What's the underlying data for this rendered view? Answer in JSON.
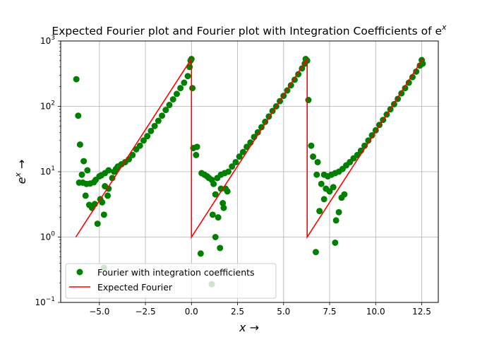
{
  "chart_data": {
    "type": "scatter",
    "title": "Expected Fourier plot and Fourier plot with Integration Coefficients of e",
    "title_sup": "x",
    "xlabel": "x →",
    "ylabel_base": "e",
    "ylabel_sup": "x",
    "ylabel_arrow": " →",
    "xlim": [
      -7.1,
      13.4
    ],
    "ylim": [
      0.1,
      1000
    ],
    "yscale": "log",
    "grid": true,
    "legend_position": "lower-left",
    "x_ticks": [
      {
        "value": -5.0,
        "label": "−5.0"
      },
      {
        "value": -2.5,
        "label": "−2.5"
      },
      {
        "value": 0.0,
        "label": "0.0"
      },
      {
        "value": 2.5,
        "label": "2.5"
      },
      {
        "value": 5.0,
        "label": "5.0"
      },
      {
        "value": 7.5,
        "label": "7.5"
      },
      {
        "value": 10.0,
        "label": "10.0"
      },
      {
        "value": 12.5,
        "label": "12.5"
      }
    ],
    "y_ticks": [
      {
        "value": 0.1,
        "base": "10",
        "exp": "−1"
      },
      {
        "value": 1,
        "base": "10",
        "exp": "0"
      },
      {
        "value": 10,
        "base": "10",
        "exp": "1"
      },
      {
        "value": 100,
        "base": "10",
        "exp": "2"
      },
      {
        "value": 1000,
        "base": "10",
        "exp": "3"
      }
    ],
    "series": [
      {
        "name": "Fourier with integration coefficients",
        "kind": "scatter",
        "color": "#008000",
        "points": [
          [
            -6.25,
            260
          ],
          [
            -6.15,
            72
          ],
          [
            -6.05,
            26
          ],
          [
            -5.95,
            9
          ],
          [
            -5.85,
            14.5
          ],
          [
            -5.75,
            4.3
          ],
          [
            -5.65,
            10.5
          ],
          [
            -5.55,
            3.1
          ],
          [
            -5.4,
            2.8
          ],
          [
            -5.25,
            3.2
          ],
          [
            -5.1,
            1.6
          ],
          [
            -4.95,
            3.8
          ],
          [
            -4.85,
            3.4
          ],
          [
            -4.75,
            2.2
          ],
          [
            -4.55,
            4.3
          ],
          [
            -4.75,
            0.34
          ],
          [
            -4.7,
            6
          ],
          [
            -4.5,
            5.5
          ],
          [
            -4.3,
            8
          ],
          [
            -4.1,
            11
          ],
          [
            -6.1,
            6.8
          ],
          [
            -5.9,
            6.8
          ],
          [
            -5.7,
            6.5
          ],
          [
            -5.5,
            6.6
          ],
          [
            -5.3,
            6.9
          ],
          [
            -5.2,
            7.5
          ],
          [
            -5.0,
            8.5
          ],
          [
            -4.9,
            8.8
          ],
          [
            -4.7,
            9.5
          ],
          [
            -4.5,
            10.5
          ],
          [
            -4.2,
            10
          ],
          [
            -4.0,
            12
          ],
          [
            -3.8,
            13
          ],
          [
            -3.6,
            14
          ],
          [
            -3.4,
            15.5
          ],
          [
            -3.2,
            18
          ],
          [
            -3.0,
            22
          ],
          [
            -2.8,
            25
          ],
          [
            -2.6,
            30
          ],
          [
            -2.4,
            35
          ],
          [
            -2.2,
            42
          ],
          [
            -2.0,
            50
          ],
          [
            -1.8,
            60
          ],
          [
            -1.6,
            72
          ],
          [
            -1.4,
            88
          ],
          [
            -1.2,
            105
          ],
          [
            -1.0,
            128
          ],
          [
            -0.8,
            155
          ],
          [
            -0.6,
            190
          ],
          [
            -0.4,
            230
          ],
          [
            -0.2,
            290
          ],
          [
            -0.1,
            400
          ],
          [
            -0.05,
            500
          ],
          [
            0.0,
            530
          ],
          [
            0.05,
            190
          ],
          [
            0.1,
            23
          ],
          [
            0.25,
            18
          ],
          [
            0.3,
            24
          ],
          [
            0.55,
            9.5
          ],
          [
            0.7,
            9
          ],
          [
            0.85,
            8.5
          ],
          [
            0.95,
            8
          ],
          [
            1.1,
            7.5
          ],
          [
            1.2,
            6.5
          ],
          [
            1.3,
            4.5
          ],
          [
            1.15,
            2.2
          ],
          [
            1.3,
            1.0
          ],
          [
            1.45,
            2.0
          ],
          [
            1.55,
            0.68
          ],
          [
            1.6,
            5.5
          ],
          [
            1.7,
            3.3
          ],
          [
            1.75,
            2.8
          ],
          [
            1.85,
            5.5
          ],
          [
            1.95,
            5
          ],
          [
            0.5,
            0.56
          ],
          [
            1.1,
            0.19
          ],
          [
            1.4,
            8
          ],
          [
            1.6,
            9
          ],
          [
            1.8,
            9.5
          ],
          [
            2.0,
            10
          ],
          [
            2.2,
            12
          ],
          [
            2.4,
            14
          ],
          [
            2.6,
            17
          ],
          [
            2.8,
            20
          ],
          [
            3.0,
            24
          ],
          [
            3.2,
            28
          ],
          [
            3.4,
            34
          ],
          [
            3.6,
            40
          ],
          [
            3.8,
            48
          ],
          [
            4.0,
            58
          ],
          [
            4.2,
            70
          ],
          [
            4.4,
            85
          ],
          [
            4.6,
            100
          ],
          [
            4.8,
            120
          ],
          [
            5.0,
            145
          ],
          [
            5.2,
            175
          ],
          [
            5.4,
            210
          ],
          [
            5.6,
            255
          ],
          [
            5.8,
            310
          ],
          [
            6.0,
            380
          ],
          [
            6.15,
            450
          ],
          [
            6.2,
            530
          ],
          [
            6.28,
            500
          ],
          [
            6.35,
            125
          ],
          [
            6.5,
            25
          ],
          [
            6.6,
            17
          ],
          [
            6.8,
            9
          ],
          [
            6.85,
            14
          ],
          [
            6.95,
            2.5
          ],
          [
            7.05,
            6.5
          ],
          [
            7.2,
            3.8
          ],
          [
            7.3,
            5.5
          ],
          [
            7.5,
            5
          ],
          [
            7.7,
            5.8
          ],
          [
            7.85,
            1.8
          ],
          [
            8.0,
            2.4
          ],
          [
            8.15,
            4
          ],
          [
            8.3,
            4.5
          ],
          [
            6.75,
            0.59
          ],
          [
            7.8,
            0.82
          ],
          [
            7.2,
            9
          ],
          [
            7.4,
            8.5
          ],
          [
            7.6,
            9
          ],
          [
            7.8,
            9.5
          ],
          [
            8.0,
            10
          ],
          [
            8.2,
            11
          ],
          [
            8.4,
            12.5
          ],
          [
            8.6,
            14
          ],
          [
            8.8,
            16
          ],
          [
            9.0,
            18
          ],
          [
            9.2,
            21
          ],
          [
            9.4,
            25
          ],
          [
            9.6,
            30
          ],
          [
            9.8,
            36
          ],
          [
            10.0,
            43
          ],
          [
            10.2,
            52
          ],
          [
            10.4,
            62
          ],
          [
            10.6,
            75
          ],
          [
            10.8,
            90
          ],
          [
            11.0,
            108
          ],
          [
            11.2,
            130
          ],
          [
            11.4,
            158
          ],
          [
            11.6,
            190
          ],
          [
            11.8,
            230
          ],
          [
            12.0,
            280
          ],
          [
            12.2,
            340
          ],
          [
            12.4,
            420
          ],
          [
            12.5,
            510
          ],
          [
            12.55,
            450
          ]
        ]
      },
      {
        "name": "Expected Fourier",
        "kind": "line",
        "color": "#ff0000",
        "points": [
          [
            -6.28,
            1
          ],
          [
            0.0,
            535
          ],
          [
            0.0,
            1
          ],
          [
            6.28,
            535
          ],
          [
            6.28,
            1
          ],
          [
            12.56,
            535
          ]
        ]
      }
    ]
  }
}
